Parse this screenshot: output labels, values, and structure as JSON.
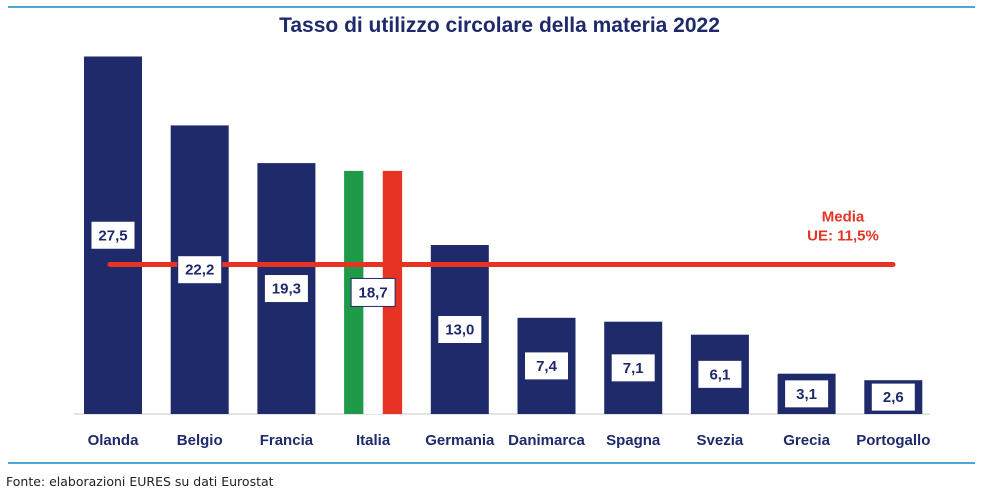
{
  "chart_data": {
    "type": "bar",
    "title": "Tasso di utilizzo circolare della materia 2022",
    "categories": [
      "Olanda",
      "Belgio",
      "Francia",
      "Italia",
      "Germania",
      "Danimarca",
      "Spagna",
      "Svezia",
      "Grecia",
      "Portogallo"
    ],
    "values": [
      27.5,
      22.2,
      19.3,
      18.7,
      13.0,
      7.4,
      7.1,
      6.1,
      3.1,
      2.6
    ],
    "value_labels": [
      "27,5",
      "22,2",
      "19,3",
      "18,7",
      "13,0",
      "7,4",
      "7,1",
      "6,1",
      "3,1",
      "2,6"
    ],
    "ylim": [
      0,
      28
    ],
    "grid": false,
    "reference_line": {
      "value": 11.5,
      "label_line1": "Media",
      "label_line2": "UE: 11,5%"
    },
    "colors": {
      "bar": "#1f2a6b",
      "average_line": "#e63323",
      "italy_green": "#1f9a48",
      "italy_white": "#ffffff",
      "italy_red": "#e63323",
      "label_box_fill": "#ffffff",
      "label_box_border": "#1f2a6b"
    }
  },
  "source": "Fonte: elaborazioni EURES su dati Eurostat"
}
